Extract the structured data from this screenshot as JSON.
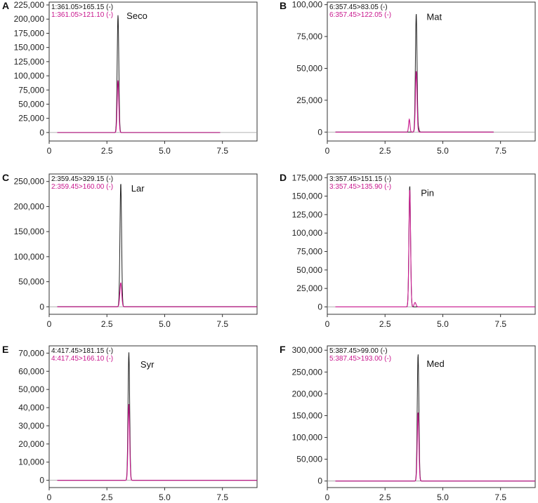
{
  "colors": {
    "trace_black": "#222222",
    "trace_magenta": "#c8168d",
    "axis": "#333333",
    "zero_line": "#999999"
  },
  "chart_data": [
    {
      "type": "line",
      "panel": "A",
      "peak_label": "Seco",
      "traces": [
        "1:361.05>165.15 (-)",
        "1:361.05>121.10 (-)"
      ],
      "xlim": [
        0,
        9
      ],
      "xticks": [
        0,
        2.5,
        5.0,
        7.5
      ],
      "xtick_labels": [
        "0",
        "2.5",
        "5.0",
        "7.5"
      ],
      "ylim": [
        -15000,
        230000
      ],
      "yticks": [
        0,
        25000,
        50000,
        75000,
        100000,
        125000,
        150000,
        175000,
        200000,
        225000
      ],
      "ytick_labels": [
        "0",
        "25,000",
        "50,000",
        "75,000",
        "100,000",
        "125,000",
        "150,000",
        "175,000",
        "200,000",
        "225,000"
      ],
      "label_x": 3.35,
      "label_y": 200000,
      "series": [
        {
          "color": "#222222",
          "peak_x": 2.98,
          "peak_y": 207000,
          "width": 0.035
        },
        {
          "color": "#c8168d",
          "peak_x": 2.98,
          "peak_y": 92000,
          "width": 0.035
        }
      ],
      "minor_peaks": [],
      "baseline_end": 7.4
    },
    {
      "type": "line",
      "panel": "B",
      "peak_label": "Mat",
      "traces": [
        "6:357.45>83.05 (-)",
        "6:357.45>122.05 (-)"
      ],
      "xlim": [
        0,
        9
      ],
      "xticks": [
        0,
        2.5,
        5.0,
        7.5
      ],
      "xtick_labels": [
        "0",
        "2.5",
        "5.0",
        "7.5"
      ],
      "ylim": [
        -7000,
        102000
      ],
      "yticks": [
        0,
        25000,
        50000,
        75000,
        100000
      ],
      "ytick_labels": [
        "0",
        "25,000",
        "50,000",
        "75,000",
        "100,000"
      ],
      "label_x": 4.3,
      "label_y": 88000,
      "series": [
        {
          "color": "#222222",
          "peak_x": 3.85,
          "peak_y": 93000,
          "width": 0.035
        },
        {
          "color": "#c8168d",
          "peak_x": 3.85,
          "peak_y": 48000,
          "width": 0.035
        }
      ],
      "minor_peaks": [
        {
          "color": "#c8168d",
          "x": 3.55,
          "y": 10000,
          "width": 0.03
        },
        {
          "color": "#222222",
          "x": 3.95,
          "y": 2500,
          "width": 0.03
        }
      ],
      "baseline_end": 7.2
    },
    {
      "type": "line",
      "panel": "C",
      "peak_label": "Lar",
      "traces": [
        "2:359.45>329.15 (-)",
        "2:359.45>160.00 (-)"
      ],
      "xlim": [
        0,
        9
      ],
      "xticks": [
        0,
        2.5,
        5.0,
        7.5
      ],
      "xtick_labels": [
        "0",
        "2.5",
        "5.0",
        "7.5"
      ],
      "ylim": [
        -15000,
        265000
      ],
      "yticks": [
        0,
        50000,
        100000,
        150000,
        200000,
        250000
      ],
      "ytick_labels": [
        "0",
        "50,000",
        "100,000",
        "150,000",
        "200,000",
        "250,000"
      ],
      "label_x": 3.55,
      "label_y": 230000,
      "series": [
        {
          "color": "#222222",
          "peak_x": 3.1,
          "peak_y": 248000,
          "width": 0.035
        },
        {
          "color": "#c8168d",
          "peak_x": 3.1,
          "peak_y": 48000,
          "width": 0.04
        }
      ],
      "minor_peaks": [],
      "baseline_end": 9
    },
    {
      "type": "line",
      "panel": "D",
      "peak_label": "Pin",
      "traces": [
        "3:357.45>151.15 (-)",
        "3:357.45>135.90 (-)"
      ],
      "xlim": [
        0,
        9
      ],
      "xticks": [
        0,
        2.5,
        5.0,
        7.5
      ],
      "xtick_labels": [
        "0",
        "2.5",
        "5.0",
        "7.5"
      ],
      "ylim": [
        -10000,
        180000
      ],
      "yticks": [
        0,
        25000,
        50000,
        75000,
        100000,
        125000,
        150000,
        175000
      ],
      "ytick_labels": [
        "0",
        "25,000",
        "50,000",
        "75,000",
        "100,000",
        "125,000",
        "150,000",
        "175,000"
      ],
      "label_x": 4.05,
      "label_y": 150000,
      "series": [
        {
          "color": "#222222",
          "peak_x": 3.57,
          "peak_y": 165000,
          "width": 0.035
        },
        {
          "color": "#c8168d",
          "peak_x": 3.57,
          "peak_y": 160000,
          "width": 0.035
        }
      ],
      "minor_peaks": [
        {
          "color": "#c8168d",
          "x": 3.8,
          "y": 6000,
          "width": 0.04
        }
      ],
      "baseline_end": 9
    },
    {
      "type": "line",
      "panel": "E",
      "peak_label": "Syr",
      "traces": [
        "4:417.45>181.15 (-)",
        "4:417.45>166.10 (-)"
      ],
      "xlim": [
        0,
        9
      ],
      "xticks": [
        0,
        2.5,
        5.0,
        7.5
      ],
      "xtick_labels": [
        "0",
        "2.5",
        "5.0",
        "7.5"
      ],
      "ylim": [
        -4000,
        74000
      ],
      "yticks": [
        0,
        10000,
        20000,
        30000,
        40000,
        50000,
        60000,
        70000
      ],
      "ytick_labels": [
        "0",
        "10,000",
        "20,000",
        "30,000",
        "40,000",
        "50,000",
        "60,000",
        "70,000"
      ],
      "label_x": 3.95,
      "label_y": 62000,
      "series": [
        {
          "color": "#222222",
          "peak_x": 3.45,
          "peak_y": 70500,
          "width": 0.035
        },
        {
          "color": "#c8168d",
          "peak_x": 3.45,
          "peak_y": 42000,
          "width": 0.035
        }
      ],
      "minor_peaks": [],
      "baseline_end": 9
    },
    {
      "type": "line",
      "panel": "F",
      "peak_label": "Med",
      "traces": [
        "5:387.45>99.00 (-)",
        "5:387.45>193.00 (-)"
      ],
      "xlim": [
        0,
        9
      ],
      "xticks": [
        0,
        2.5,
        5.0,
        7.5
      ],
      "xtick_labels": [
        "0",
        "2.5",
        "5.0",
        "7.5"
      ],
      "ylim": [
        -15000,
        310000
      ],
      "yticks": [
        0,
        50000,
        100000,
        150000,
        200000,
        250000,
        300000
      ],
      "ytick_labels": [
        "0",
        "50,000",
        "100,000",
        "150,000",
        "200,000",
        "250,000",
        "300,000"
      ],
      "label_x": 4.3,
      "label_y": 262000,
      "series": [
        {
          "color": "#222222",
          "peak_x": 3.93,
          "peak_y": 292000,
          "width": 0.035
        },
        {
          "color": "#c8168d",
          "peak_x": 3.93,
          "peak_y": 158000,
          "width": 0.035
        }
      ],
      "minor_peaks": [],
      "baseline_end": 9
    }
  ]
}
